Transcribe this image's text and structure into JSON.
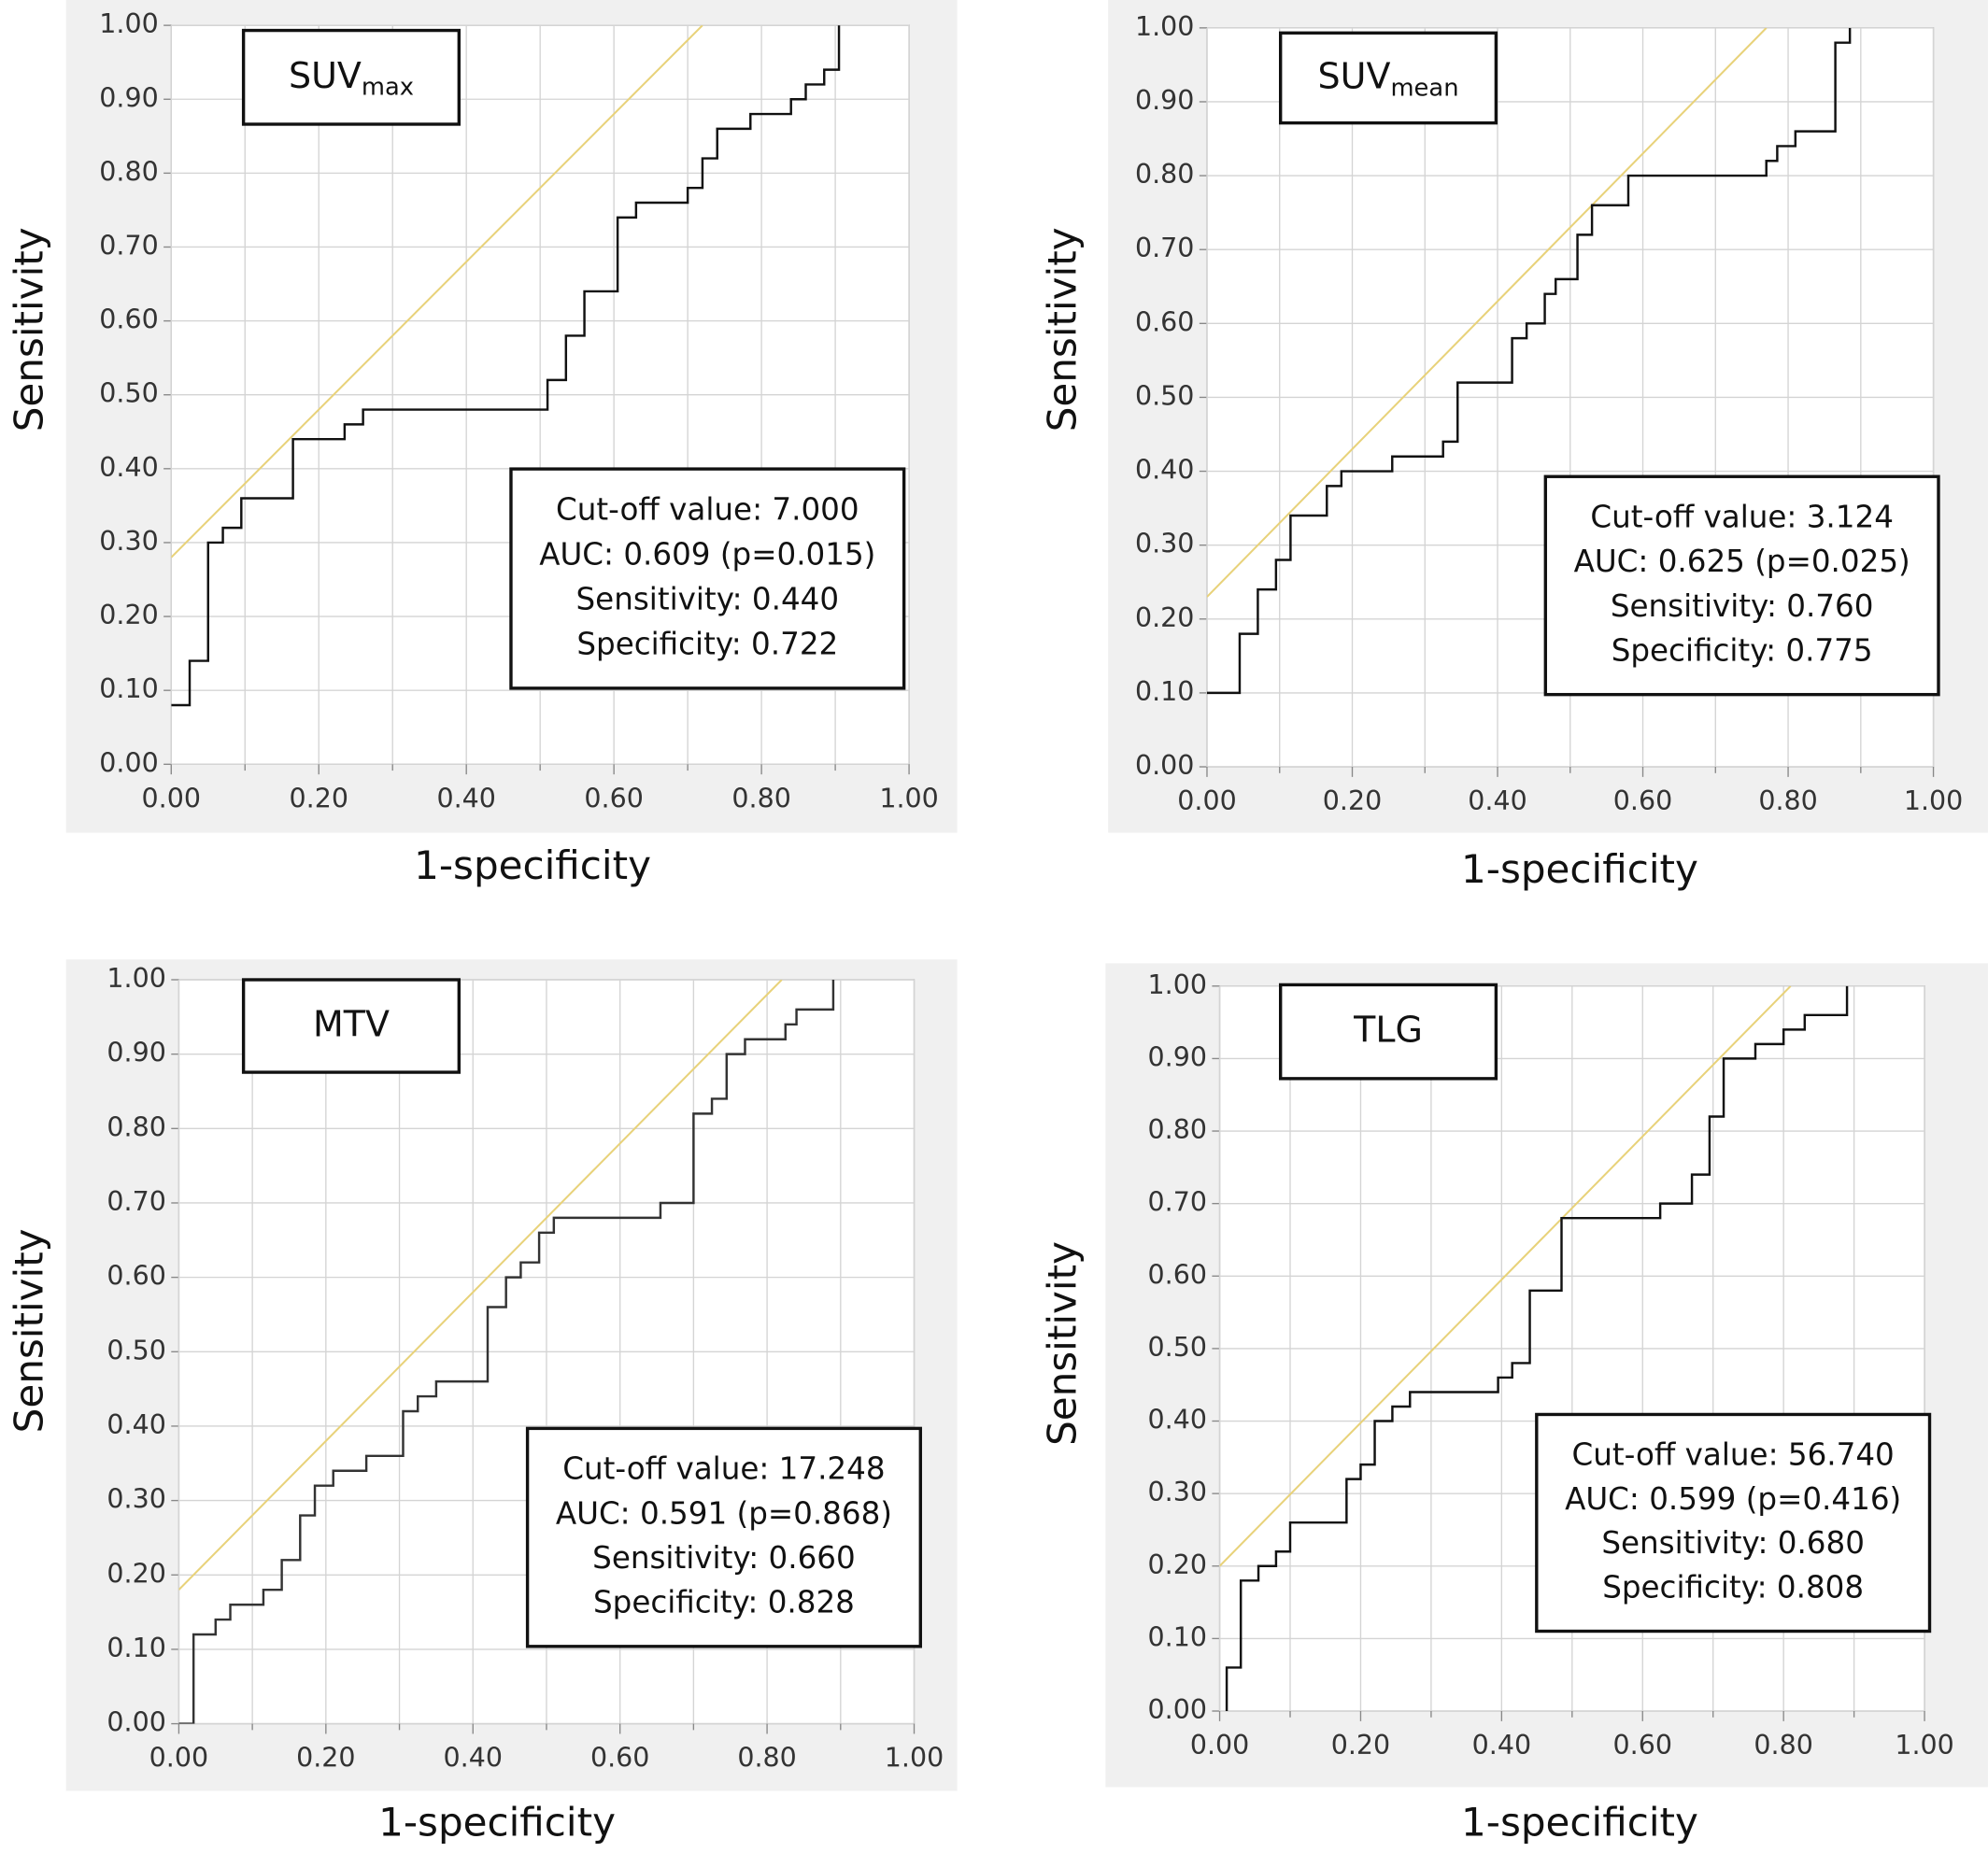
{
  "chart_data": [
    {
      "type": "line",
      "title": "SUV",
      "title_subscript": "max",
      "x_label": "1-specificity",
      "y_label": "Sensitivity",
      "annotations": [
        "Cut-off value: 7.000",
        "AUC: 0.609 (p=0.015)",
        "Sensitivity: 0.440",
        "Specificity: 0.722"
      ],
      "xlim": [
        0,
        1
      ],
      "ylim": [
        0,
        1
      ],
      "xticks": [
        {
          "value": 0,
          "label": "0.00"
        },
        {
          "value": 0.2,
          "label": "0.20"
        },
        {
          "value": 0.4,
          "label": "0.40"
        },
        {
          "value": 0.6,
          "label": "0.60"
        },
        {
          "value": 0.8,
          "label": "0.80"
        },
        {
          "value": 1,
          "label": "1.00"
        }
      ],
      "xminorticks": [
        0.1,
        0.3,
        0.5,
        0.7,
        0.9
      ],
      "yticks": [
        {
          "value": 0,
          "label": "0.00"
        },
        {
          "value": 0.1,
          "label": "0.10"
        },
        {
          "value": 0.2,
          "label": "0.20"
        },
        {
          "value": 0.3,
          "label": "0.30"
        },
        {
          "value": 0.4,
          "label": "0.40"
        },
        {
          "value": 0.5,
          "label": "0.50"
        },
        {
          "value": 0.6,
          "label": "0.60"
        },
        {
          "value": 0.7,
          "label": "0.70"
        },
        {
          "value": 0.8,
          "label": "0.80"
        },
        {
          "value": 0.9,
          "label": "0.90"
        },
        {
          "value": 1,
          "label": "1.00"
        }
      ],
      "grid": true,
      "reference_line": {
        "color": "#e8d27a",
        "x": [
          0,
          0.72
        ],
        "values": [
          0.28,
          1.0
        ]
      },
      "series": [
        {
          "color": "#111111",
          "x": [
            0,
            0.025,
            0.025,
            0.05,
            0.05,
            0.07,
            0.07,
            0.095,
            0.095,
            0.165,
            0.165,
            0.235,
            0.235,
            0.26,
            0.26,
            0.51,
            0.51,
            0.535,
            0.535,
            0.56,
            0.56,
            0.605,
            0.605,
            0.63,
            0.63,
            0.7,
            0.7,
            0.72,
            0.72,
            0.74,
            0.74,
            0.785,
            0.785,
            0.84,
            0.84,
            0.86,
            0.86,
            0.885,
            0.885,
            0.905,
            0.905
          ],
          "values": [
            0.08,
            0.08,
            0.14,
            0.14,
            0.3,
            0.3,
            0.32,
            0.32,
            0.36,
            0.36,
            0.44,
            0.44,
            0.46,
            0.46,
            0.48,
            0.48,
            0.52,
            0.52,
            0.58,
            0.58,
            0.64,
            0.64,
            0.74,
            0.74,
            0.76,
            0.76,
            0.78,
            0.78,
            0.82,
            0.82,
            0.86,
            0.86,
            0.88,
            0.88,
            0.9,
            0.9,
            0.92,
            0.92,
            0.94,
            0.94,
            1.0
          ]
        }
      ]
    },
    {
      "type": "line",
      "title": "SUV",
      "title_subscript": "mean",
      "x_label": "1-specificity",
      "y_label": "Sensitivity",
      "annotations": [
        "Cut-off value: 3.124",
        "AUC: 0.625 (p=0.025)",
        "Sensitivity: 0.760",
        "Specificity: 0.775"
      ],
      "xlim": [
        0,
        1
      ],
      "ylim": [
        0,
        1
      ],
      "xticks": [
        {
          "value": 0,
          "label": "0.00"
        },
        {
          "value": 0.2,
          "label": "0.20"
        },
        {
          "value": 0.4,
          "label": "0.40"
        },
        {
          "value": 0.6,
          "label": "0.60"
        },
        {
          "value": 0.8,
          "label": "0.80"
        },
        {
          "value": 1,
          "label": "1.00"
        }
      ],
      "xminorticks": [
        0.1,
        0.3,
        0.5,
        0.7,
        0.9
      ],
      "yticks": [
        {
          "value": 0,
          "label": "0.00"
        },
        {
          "value": 0.1,
          "label": "0.10"
        },
        {
          "value": 0.2,
          "label": "0.20"
        },
        {
          "value": 0.3,
          "label": "0.30"
        },
        {
          "value": 0.4,
          "label": "0.40"
        },
        {
          "value": 0.5,
          "label": "0.50"
        },
        {
          "value": 0.6,
          "label": "0.60"
        },
        {
          "value": 0.7,
          "label": "0.70"
        },
        {
          "value": 0.8,
          "label": "0.80"
        },
        {
          "value": 0.9,
          "label": "0.90"
        },
        {
          "value": 1,
          "label": "1.00"
        }
      ],
      "grid": true,
      "reference_line": {
        "color": "#e8d27a",
        "x": [
          0,
          0.77
        ],
        "values": [
          0.23,
          1.0
        ]
      },
      "series": [
        {
          "color": "#111111",
          "x": [
            0,
            0.045,
            0.045,
            0.07,
            0.07,
            0.095,
            0.095,
            0.115,
            0.115,
            0.165,
            0.165,
            0.185,
            0.185,
            0.255,
            0.255,
            0.325,
            0.325,
            0.345,
            0.345,
            0.42,
            0.42,
            0.44,
            0.44,
            0.465,
            0.465,
            0.48,
            0.48,
            0.51,
            0.51,
            0.53,
            0.53,
            0.58,
            0.58,
            0.77,
            0.77,
            0.785,
            0.785,
            0.81,
            0.81,
            0.865,
            0.865,
            0.885,
            0.885
          ],
          "values": [
            0.1,
            0.1,
            0.18,
            0.18,
            0.24,
            0.24,
            0.28,
            0.28,
            0.34,
            0.34,
            0.38,
            0.38,
            0.4,
            0.4,
            0.42,
            0.42,
            0.44,
            0.44,
            0.52,
            0.52,
            0.58,
            0.58,
            0.6,
            0.6,
            0.64,
            0.64,
            0.66,
            0.66,
            0.72,
            0.72,
            0.76,
            0.76,
            0.8,
            0.8,
            0.82,
            0.82,
            0.84,
            0.84,
            0.86,
            0.86,
            0.98,
            0.98,
            1.0
          ]
        }
      ]
    },
    {
      "type": "line",
      "title": "MTV",
      "x_label": "1-specificity",
      "y_label": "Sensitivity",
      "annotations": [
        "Cut-off value: 17.248",
        "AUC: 0.591 (p=0.868)",
        "Sensitivity: 0.660",
        "Specificity: 0.828"
      ],
      "xlim": [
        0,
        1
      ],
      "ylim": [
        0,
        1
      ],
      "xticks": [
        {
          "value": 0,
          "label": "0.00"
        },
        {
          "value": 0.2,
          "label": "0.20"
        },
        {
          "value": 0.4,
          "label": "0.40"
        },
        {
          "value": 0.6,
          "label": "0.60"
        },
        {
          "value": 0.8,
          "label": "0.80"
        },
        {
          "value": 1,
          "label": "1.00"
        }
      ],
      "xminorticks": [
        0.1,
        0.3,
        0.5,
        0.7,
        0.9
      ],
      "yticks": [
        {
          "value": 0,
          "label": "0.00"
        },
        {
          "value": 0.1,
          "label": "0.10"
        },
        {
          "value": 0.2,
          "label": "0.20"
        },
        {
          "value": 0.3,
          "label": "0.30"
        },
        {
          "value": 0.4,
          "label": "0.40"
        },
        {
          "value": 0.5,
          "label": "0.50"
        },
        {
          "value": 0.6,
          "label": "0.60"
        },
        {
          "value": 0.7,
          "label": "0.70"
        },
        {
          "value": 0.8,
          "label": "0.80"
        },
        {
          "value": 0.9,
          "label": "0.90"
        },
        {
          "value": 1,
          "label": "1.00"
        }
      ],
      "grid": true,
      "reference_line": {
        "color": "#e8d27a",
        "x": [
          0,
          0.82
        ],
        "values": [
          0.18,
          1.0
        ]
      },
      "series": [
        {
          "color": "#333333",
          "x": [
            0,
            0.02,
            0.02,
            0.05,
            0.05,
            0.07,
            0.07,
            0.115,
            0.115,
            0.14,
            0.14,
            0.165,
            0.165,
            0.185,
            0.185,
            0.21,
            0.21,
            0.255,
            0.255,
            0.305,
            0.305,
            0.325,
            0.325,
            0.35,
            0.35,
            0.42,
            0.42,
            0.445,
            0.445,
            0.465,
            0.465,
            0.49,
            0.49,
            0.51,
            0.51,
            0.655,
            0.655,
            0.7,
            0.7,
            0.725,
            0.725,
            0.745,
            0.745,
            0.77,
            0.77,
            0.825,
            0.825,
            0.84,
            0.84,
            0.89,
            0.89
          ],
          "values": [
            0,
            0,
            0.12,
            0.12,
            0.14,
            0.14,
            0.16,
            0.16,
            0.18,
            0.18,
            0.22,
            0.22,
            0.28,
            0.28,
            0.32,
            0.32,
            0.34,
            0.34,
            0.36,
            0.36,
            0.42,
            0.42,
            0.44,
            0.44,
            0.46,
            0.46,
            0.56,
            0.56,
            0.6,
            0.6,
            0.62,
            0.62,
            0.66,
            0.66,
            0.68,
            0.68,
            0.7,
            0.7,
            0.82,
            0.82,
            0.84,
            0.84,
            0.9,
            0.9,
            0.92,
            0.92,
            0.94,
            0.94,
            0.96,
            0.96,
            1.0
          ]
        }
      ]
    },
    {
      "type": "line",
      "title": "TLG",
      "x_label": "1-specificity",
      "y_label": "Sensitivity",
      "annotations": [
        "Cut-off value: 56.740",
        "AUC: 0.599 (p=0.416)",
        "Sensitivity: 0.680",
        "Specificity: 0.808"
      ],
      "xlim": [
        0,
        1
      ],
      "ylim": [
        0,
        1
      ],
      "xticks": [
        {
          "value": 0,
          "label": "0.00"
        },
        {
          "value": 0.2,
          "label": "0.20"
        },
        {
          "value": 0.4,
          "label": "0.40"
        },
        {
          "value": 0.6,
          "label": "0.60"
        },
        {
          "value": 0.8,
          "label": "0.80"
        },
        {
          "value": 1,
          "label": "1.00"
        }
      ],
      "xminorticks": [
        0.1,
        0.3,
        0.5,
        0.7,
        0.9
      ],
      "yticks": [
        {
          "value": 0,
          "label": "0.00"
        },
        {
          "value": 0.1,
          "label": "0.10"
        },
        {
          "value": 0.2,
          "label": "0.20"
        },
        {
          "value": 0.3,
          "label": "0.30"
        },
        {
          "value": 0.4,
          "label": "0.40"
        },
        {
          "value": 0.5,
          "label": "0.50"
        },
        {
          "value": 0.6,
          "label": "0.60"
        },
        {
          "value": 0.7,
          "label": "0.70"
        },
        {
          "value": 0.8,
          "label": "0.80"
        },
        {
          "value": 0.9,
          "label": "0.90"
        },
        {
          "value": 1,
          "label": "1.00"
        }
      ],
      "grid": true,
      "reference_line": {
        "color": "#e8d27a",
        "x": [
          0,
          0.81
        ],
        "values": [
          0.2,
          1.0
        ]
      },
      "series": [
        {
          "color": "#111111",
          "x": [
            0.01,
            0.01,
            0.03,
            0.03,
            0.055,
            0.055,
            0.08,
            0.08,
            0.1,
            0.1,
            0.18,
            0.18,
            0.2,
            0.2,
            0.22,
            0.22,
            0.245,
            0.245,
            0.27,
            0.27,
            0.395,
            0.395,
            0.415,
            0.415,
            0.44,
            0.44,
            0.485,
            0.485,
            0.625,
            0.625,
            0.67,
            0.67,
            0.695,
            0.695,
            0.715,
            0.715,
            0.76,
            0.76,
            0.8,
            0.8,
            0.83,
            0.83,
            0.89,
            0.89
          ],
          "values": [
            0,
            0.06,
            0.06,
            0.18,
            0.18,
            0.2,
            0.2,
            0.22,
            0.22,
            0.26,
            0.26,
            0.32,
            0.32,
            0.34,
            0.34,
            0.4,
            0.4,
            0.42,
            0.42,
            0.44,
            0.44,
            0.46,
            0.46,
            0.48,
            0.48,
            0.58,
            0.58,
            0.68,
            0.68,
            0.7,
            0.7,
            0.74,
            0.74,
            0.82,
            0.82,
            0.9,
            0.9,
            0.92,
            0.92,
            0.94,
            0.94,
            0.96,
            0.96,
            1.0
          ]
        }
      ]
    }
  ]
}
